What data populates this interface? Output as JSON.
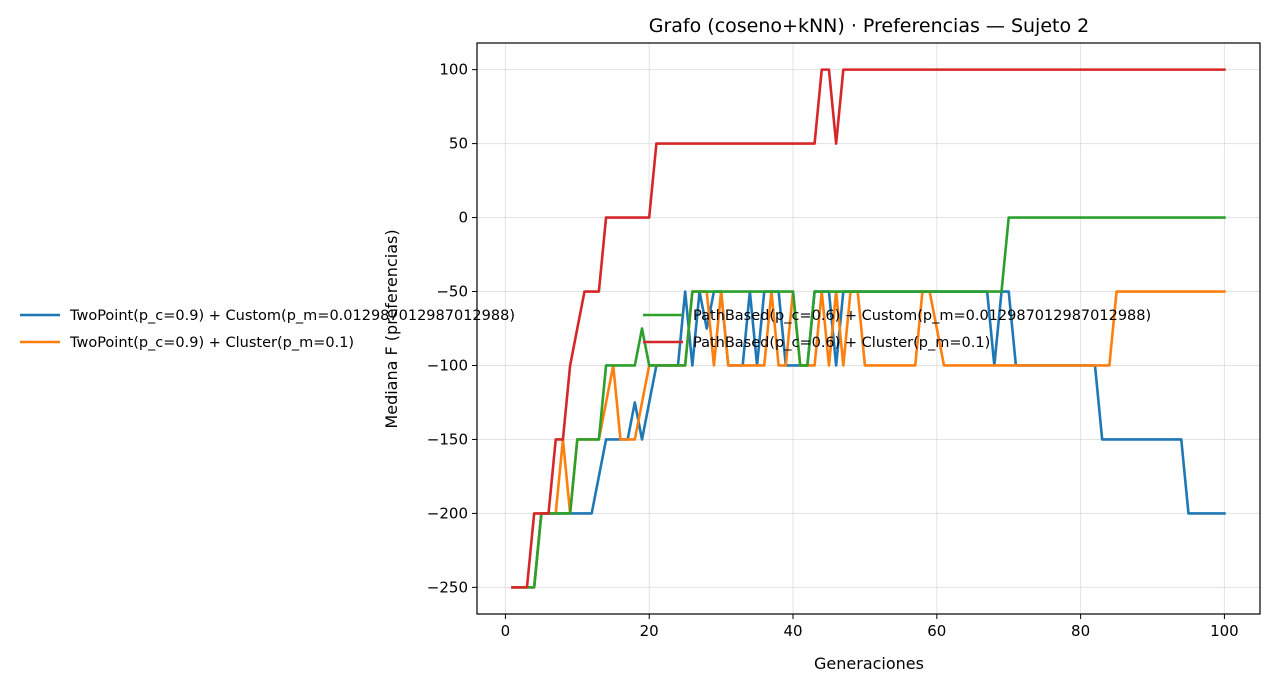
{
  "chart_data": {
    "type": "line",
    "title": "Grafo (coseno+kNN) · Preferencias — Sujeto 2",
    "xlabel": "Generaciones",
    "ylabel": "Mediana F (preferencias)",
    "xlim": [
      -3.95,
      104.95
    ],
    "ylim": [
      -268,
      118
    ],
    "xticks": [
      0,
      20,
      40,
      60,
      80,
      100
    ],
    "yticks": [
      -250,
      -200,
      -150,
      -100,
      -50,
      0,
      50,
      100
    ],
    "grid": true,
    "legend": {
      "placement": "left",
      "columns": 2
    },
    "x": [
      1,
      2,
      3,
      4,
      5,
      6,
      7,
      8,
      9,
      10,
      11,
      12,
      13,
      14,
      15,
      16,
      17,
      18,
      19,
      20,
      21,
      22,
      23,
      24,
      25,
      26,
      27,
      28,
      29,
      30,
      31,
      32,
      33,
      34,
      35,
      36,
      37,
      38,
      39,
      40,
      41,
      42,
      43,
      44,
      45,
      46,
      47,
      48,
      49,
      50,
      51,
      52,
      53,
      54,
      55,
      56,
      57,
      58,
      59,
      60,
      61,
      62,
      63,
      64,
      65,
      66,
      67,
      68,
      69,
      70,
      71,
      72,
      73,
      74,
      75,
      76,
      77,
      78,
      79,
      80,
      81,
      82,
      83,
      84,
      85,
      86,
      87,
      88,
      89,
      90,
      91,
      92,
      93,
      94,
      95,
      96,
      97,
      98,
      99,
      100
    ],
    "series": [
      {
        "name": "TwoPoint(p_c=0.9) + Custom(p_m=0.012987012987012988)",
        "color": "#1f77b4",
        "values": [
          -250,
          -250,
          -250,
          -250,
          -200,
          -200,
          -200,
          -200,
          -200,
          -200,
          -200,
          -200,
          -175,
          -150,
          -150,
          -150,
          -150,
          -125,
          -150,
          -125,
          -100,
          -100,
          -100,
          -100,
          -50,
          -100,
          -50,
          -75,
          -50,
          -50,
          -100,
          -100,
          -100,
          -50,
          -100,
          -50,
          -50,
          -50,
          -100,
          -100,
          -100,
          -100,
          -50,
          -50,
          -50,
          -100,
          -50,
          -50,
          -50,
          -50,
          -50,
          -50,
          -50,
          -50,
          -50,
          -50,
          -50,
          -50,
          -50,
          -50,
          -50,
          -50,
          -50,
          -50,
          -50,
          -50,
          -50,
          -100,
          -50,
          -50,
          -100,
          -100,
          -100,
          -100,
          -100,
          -100,
          -100,
          -100,
          -100,
          -100,
          -100,
          -100,
          -150,
          -150,
          -150,
          -150,
          -150,
          -150,
          -150,
          -150,
          -150,
          -150,
          -150,
          -150,
          -200,
          -200,
          -200,
          -200,
          -200,
          -200
        ]
      },
      {
        "name": "TwoPoint(p_c=0.9) + Cluster(p_m=0.1)",
        "color": "#ff7f0e",
        "values": [
          -250,
          -250,
          -250,
          -250,
          -200,
          -200,
          -200,
          -150,
          -200,
          -150,
          -150,
          -150,
          -150,
          -125,
          -100,
          -150,
          -150,
          -150,
          -125,
          -100,
          -100,
          -100,
          -100,
          -100,
          -100,
          -50,
          -50,
          -50,
          -100,
          -50,
          -100,
          -100,
          -100,
          -100,
          -100,
          -100,
          -50,
          -100,
          -100,
          -50,
          -100,
          -100,
          -100,
          -50,
          -100,
          -50,
          -100,
          -50,
          -50,
          -100,
          -100,
          -100,
          -100,
          -100,
          -100,
          -100,
          -100,
          -50,
          -50,
          -75,
          -100,
          -100,
          -100,
          -100,
          -100,
          -100,
          -100,
          -100,
          -100,
          -100,
          -100,
          -100,
          -100,
          -100,
          -100,
          -100,
          -100,
          -100,
          -100,
          -100,
          -100,
          -100,
          -100,
          -100,
          -50,
          -50,
          -50,
          -50,
          -50,
          -50,
          -50,
          -50,
          -50,
          -50,
          -50,
          -50,
          -50,
          -50,
          -50,
          -50
        ]
      },
      {
        "name": "PathBased(p_c=0.6) + Custom(p_m=0.012987012987012988)",
        "color": "#2ca02c",
        "values": [
          -250,
          -250,
          -250,
          -250,
          -200,
          -200,
          -200,
          -200,
          -200,
          -150,
          -150,
          -150,
          -150,
          -100,
          -100,
          -100,
          -100,
          -100,
          -75,
          -100,
          -100,
          -100,
          -100,
          -100,
          -100,
          -50,
          -50,
          -50,
          -50,
          -50,
          -50,
          -50,
          -50,
          -50,
          -50,
          -50,
          -50,
          -50,
          -50,
          -50,
          -100,
          -100,
          -50,
          -50,
          -50,
          -50,
          -50,
          -50,
          -50,
          -50,
          -50,
          -50,
          -50,
          -50,
          -50,
          -50,
          -50,
          -50,
          -50,
          -50,
          -50,
          -50,
          -50,
          -50,
          -50,
          -50,
          -50,
          -50,
          -50,
          0,
          0,
          0,
          0,
          0,
          0,
          0,
          0,
          0,
          0,
          0,
          0,
          0,
          0,
          0,
          0,
          0,
          0,
          0,
          0,
          0,
          0,
          0,
          0,
          0,
          0,
          0,
          0,
          0,
          0,
          0
        ]
      },
      {
        "name": "PathBased(p_c=0.6) + Cluster(p_m=0.1)",
        "color": "#d62728",
        "values": [
          -250,
          -250,
          -250,
          -200,
          -200,
          -200,
          -150,
          -150,
          -100,
          -75,
          -50,
          -50,
          -50,
          0,
          0,
          0,
          0,
          0,
          0,
          0,
          50,
          50,
          50,
          50,
          50,
          50,
          50,
          50,
          50,
          50,
          50,
          50,
          50,
          50,
          50,
          50,
          50,
          50,
          50,
          50,
          50,
          50,
          50,
          100,
          100,
          50,
          100,
          100,
          100,
          100,
          100,
          100,
          100,
          100,
          100,
          100,
          100,
          100,
          100,
          100,
          100,
          100,
          100,
          100,
          100,
          100,
          100,
          100,
          100,
          100,
          100,
          100,
          100,
          100,
          100,
          100,
          100,
          100,
          100,
          100,
          100,
          100,
          100,
          100,
          100,
          100,
          100,
          100,
          100,
          100,
          100,
          100,
          100,
          100,
          100,
          100,
          100,
          100,
          100,
          100
        ]
      }
    ]
  }
}
